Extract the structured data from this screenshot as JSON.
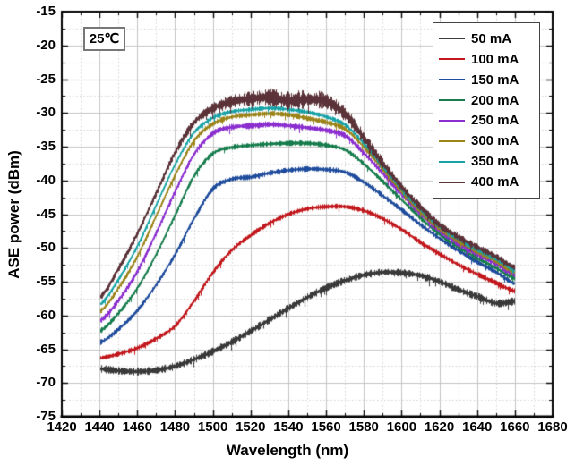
{
  "figure": {
    "annotation": "25℃"
  },
  "chart_data": {
    "type": "line",
    "title": "",
    "xlabel": "Wavelength (nm)",
    "ylabel": "ASE power (dBm)",
    "xlim": [
      1420,
      1680
    ],
    "ylim": [
      -75,
      -15
    ],
    "x_ticks": [
      1420,
      1440,
      1460,
      1480,
      1500,
      1520,
      1540,
      1560,
      1580,
      1600,
      1620,
      1640,
      1660,
      1680
    ],
    "y_ticks": [
      -15,
      -20,
      -25,
      -30,
      -35,
      -40,
      -45,
      -50,
      -55,
      -60,
      -65,
      -70,
      -75
    ],
    "x_minor_step": 10,
    "y_minor_step": 2.5,
    "grid": {
      "major": true,
      "minor": "dotted"
    },
    "legend_position": "top-right",
    "x": [
      1440,
      1450,
      1460,
      1470,
      1480,
      1490,
      1500,
      1510,
      1520,
      1530,
      1540,
      1550,
      1560,
      1570,
      1580,
      1590,
      1600,
      1610,
      1620,
      1630,
      1640,
      1650,
      1660
    ],
    "series": [
      {
        "name": "50 mA",
        "color": "#3a3a3a",
        "noise_db": 0.5,
        "values": [
          -67.9,
          -68.2,
          -68.3,
          -68.1,
          -67.5,
          -66.5,
          -65.3,
          -63.9,
          -62.3,
          -60.6,
          -58.9,
          -57.3,
          -55.9,
          -54.8,
          -54.0,
          -53.6,
          -53.7,
          -54.1,
          -55.0,
          -56.2,
          -57.2,
          -58.2,
          -57.9
        ]
      },
      {
        "name": "100 mA",
        "color": "#c2181d",
        "noise_db": 0.35,
        "values": [
          -66.3,
          -65.7,
          -64.8,
          -63.4,
          -61.5,
          -57.8,
          -53.6,
          -50.3,
          -48.1,
          -46.3,
          -45.0,
          -44.2,
          -43.9,
          -43.9,
          -44.5,
          -45.7,
          -47.3,
          -49.2,
          -50.9,
          -52.5,
          -53.9,
          -55.2,
          -56.4
        ]
      },
      {
        "name": "150 mA",
        "color": "#1f4c9c",
        "noise_db": 0.35,
        "values": [
          -64.0,
          -62.0,
          -59.2,
          -55.4,
          -50.9,
          -45.6,
          -41.2,
          -39.8,
          -39.5,
          -38.9,
          -38.5,
          -38.3,
          -38.4,
          -38.8,
          -40.3,
          -42.3,
          -44.4,
          -46.6,
          -48.6,
          -50.4,
          -52.1,
          -53.6,
          -55.3
        ]
      },
      {
        "name": "200 mA",
        "color": "#177d4d",
        "noise_db": 0.35,
        "values": [
          -62.3,
          -59.6,
          -55.9,
          -50.9,
          -45.1,
          -39.3,
          -36.0,
          -35.1,
          -34.8,
          -34.6,
          -34.5,
          -34.5,
          -34.8,
          -35.5,
          -37.6,
          -40.2,
          -42.9,
          -45.6,
          -48.0,
          -49.9,
          -51.5,
          -53.0,
          -54.5
        ]
      },
      {
        "name": "250 mA",
        "color": "#8c2fd0",
        "noise_db": 0.4,
        "values": [
          -60.8,
          -57.7,
          -53.4,
          -47.7,
          -41.6,
          -36.1,
          -33.0,
          -32.1,
          -31.9,
          -31.7,
          -31.9,
          -32.2,
          -32.6,
          -33.4,
          -36.0,
          -39.0,
          -42.1,
          -45.0,
          -47.5,
          -49.4,
          -51.0,
          -52.4,
          -54.0
        ]
      },
      {
        "name": "300 mA",
        "color": "#9c8419",
        "noise_db": 0.35,
        "values": [
          -59.4,
          -55.9,
          -51.2,
          -45.2,
          -39.2,
          -34.1,
          -31.6,
          -30.6,
          -30.3,
          -30.1,
          -30.3,
          -30.8,
          -31.4,
          -32.4,
          -35.1,
          -38.4,
          -41.7,
          -44.7,
          -47.2,
          -49.0,
          -50.6,
          -52.0,
          -53.6
        ]
      },
      {
        "name": "350 mA",
        "color": "#18a3a6",
        "noise_db": 0.3,
        "values": [
          -58.4,
          -54.6,
          -49.7,
          -43.6,
          -37.6,
          -32.9,
          -30.7,
          -29.8,
          -29.5,
          -29.3,
          -29.5,
          -29.9,
          -30.6,
          -31.8,
          -34.6,
          -38.0,
          -41.4,
          -44.4,
          -46.9,
          -48.7,
          -50.3,
          -51.7,
          -53.3
        ]
      },
      {
        "name": "400 mA",
        "color": "#5b3339",
        "noise_db": 0.45,
        "noise_extra": 0.75,
        "noise_center": 1545,
        "noise_width": 42,
        "values": [
          -57.3,
          -53.0,
          -47.8,
          -41.8,
          -35.8,
          -31.4,
          -29.3,
          -28.3,
          -27.9,
          -27.7,
          -28.2,
          -28.0,
          -28.3,
          -30.2,
          -33.8,
          -37.5,
          -41.0,
          -44.0,
          -46.6,
          -48.4,
          -49.9,
          -51.3,
          -52.9
        ]
      }
    ]
  }
}
